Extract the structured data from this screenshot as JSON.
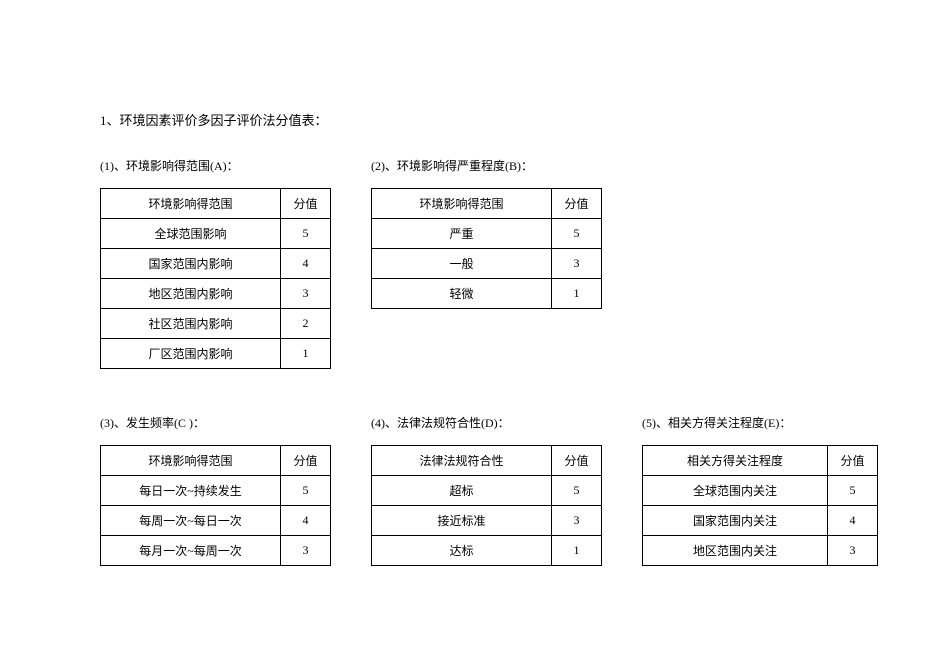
{
  "mainTitle": "1、环境因素评价多因子评价法分值表：",
  "sections": {
    "a": {
      "title": "(1)、环境影响得范围(A)：",
      "header": [
        "环境影响得范围",
        "分值"
      ],
      "rows": [
        [
          "全球范围影响",
          "5"
        ],
        [
          "国家范围内影响",
          "4"
        ],
        [
          "地区范围内影响",
          "3"
        ],
        [
          "社区范围内影响",
          "2"
        ],
        [
          "厂区范围内影响",
          "1"
        ]
      ]
    },
    "b": {
      "title": "(2)、环境影响得严重程度(B)：",
      "header": [
        "环境影响得范围",
        "分值"
      ],
      "rows": [
        [
          "严重",
          "5"
        ],
        [
          "一般",
          "3"
        ],
        [
          "轻微",
          "1"
        ]
      ]
    },
    "c": {
      "title": "(3)、发生频率(C )：",
      "header": [
        "环境影响得范围",
        "分值"
      ],
      "rows": [
        [
          "每日一次~持续发生",
          "5"
        ],
        [
          "每周一次~每日一次",
          "4"
        ],
        [
          "每月一次~每周一次",
          "3"
        ]
      ]
    },
    "d": {
      "title": "(4)、法律法规符合性(D)：",
      "header": [
        "法律法规符合性",
        "分值"
      ],
      "rows": [
        [
          "超标",
          "5"
        ],
        [
          "接近标准",
          "3"
        ],
        [
          "达标",
          "1"
        ]
      ]
    },
    "e": {
      "title": "(5)、相关方得关注程度(E)：",
      "header": [
        "相关方得关注程度",
        "分值"
      ],
      "rows": [
        [
          "全球范围内关注",
          "5"
        ],
        [
          "国家范围内关注",
          "4"
        ],
        [
          "地区范围内关注",
          "3"
        ]
      ]
    }
  }
}
